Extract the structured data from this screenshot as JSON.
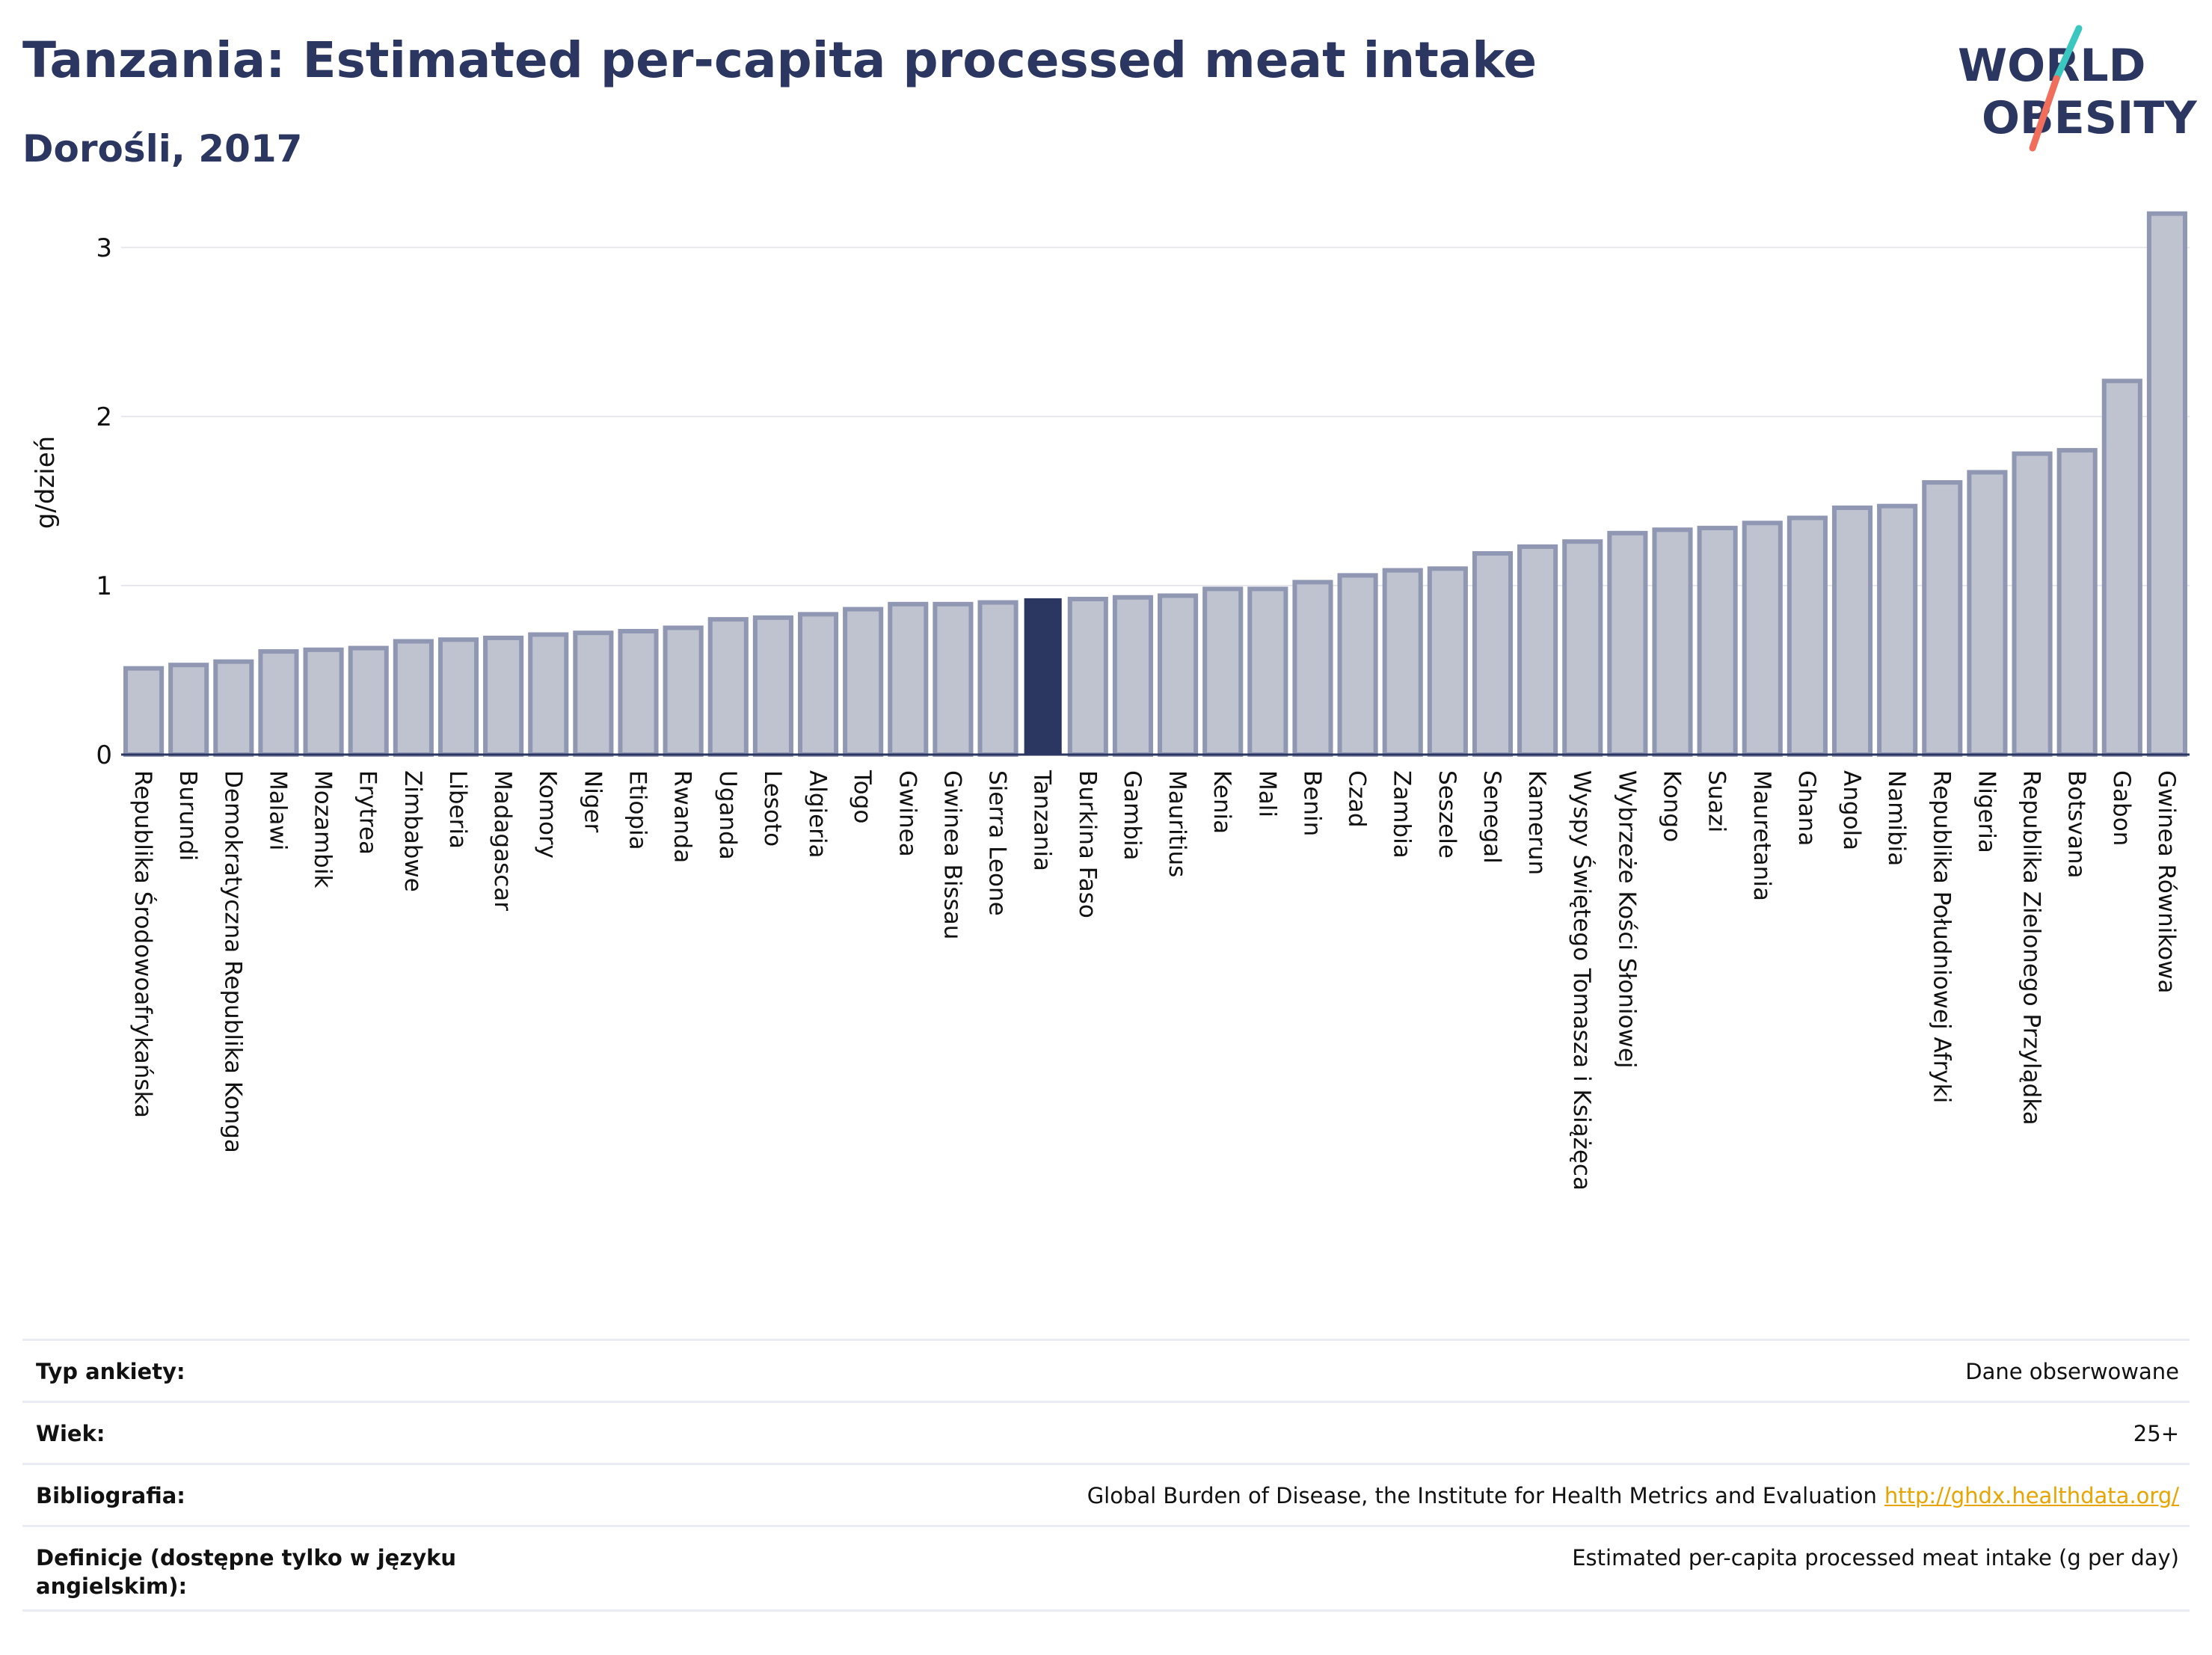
{
  "header": {
    "title": "Tanzania: Estimated per-capita processed meat intake",
    "subtitle": "Dorośli, 2017"
  },
  "logo": {
    "line1": "WORLD",
    "line2": "OBESITY",
    "accent_colors": [
      "#3cc6c0",
      "#f06e5b"
    ]
  },
  "colors": {
    "highlight": "#2b3661",
    "bar": "#bfc3d0",
    "bar_edge": "#8f97b3",
    "grid": "#e6e8ee"
  },
  "chart_data": {
    "type": "bar",
    "ylabel": "g/dzień",
    "ylim": [
      0,
      3.3
    ],
    "yticks": [
      0,
      1,
      2,
      3
    ],
    "grid": true,
    "highlight": "Tanzania",
    "categories": [
      "Republika Środowoafrykańska",
      "Burundi",
      "Demokratyczna Republika Konga",
      "Malawi",
      "Mozambik",
      "Erytrea",
      "Zimbabwe",
      "Liberia",
      "Madagascar",
      "Komory",
      "Niger",
      "Etiopia",
      "Rwanda",
      "Uganda",
      "Lesoto",
      "Algieria",
      "Togo",
      "Gwinea",
      "Gwinea Bissau",
      "Sierra Leone",
      "Tanzania",
      "Burkina Faso",
      "Gambia",
      "Mauritius",
      "Kenia",
      "Mali",
      "Benin",
      "Czad",
      "Zambia",
      "Seszele",
      "Senegal",
      "Kamerun",
      "Wyspy Świętego Tomasza i Książęca",
      "Wybrzeże Kości Słoniowej",
      "Kongo",
      "Suazi",
      "Mauretania",
      "Ghana",
      "Angola",
      "Namibia",
      "Republika Południowej Afryki",
      "Nigeria",
      "Republika Zielonego Przylądka",
      "Botsvana",
      "Gabon",
      "Gwinea Równikowa"
    ],
    "values": [
      0.51,
      0.53,
      0.55,
      0.61,
      0.62,
      0.63,
      0.67,
      0.68,
      0.69,
      0.71,
      0.72,
      0.73,
      0.75,
      0.8,
      0.81,
      0.83,
      0.86,
      0.89,
      0.89,
      0.9,
      0.92,
      0.92,
      0.93,
      0.94,
      0.98,
      0.98,
      1.02,
      1.06,
      1.09,
      1.1,
      1.19,
      1.23,
      1.26,
      1.31,
      1.33,
      1.34,
      1.37,
      1.4,
      1.46,
      1.47,
      1.61,
      1.67,
      1.78,
      1.8,
      2.21,
      3.2
    ]
  },
  "meta": {
    "rows": [
      {
        "label": "Typ ankiety:",
        "value": "Dane obserwowane"
      },
      {
        "label": "Wiek:",
        "value": "25+"
      },
      {
        "label": "Bibliografia:",
        "value": "Global Burden of Disease, the Institute for Health Metrics and Evaluation",
        "link": "http://ghdx.healthdata.org/"
      },
      {
        "label": "Definicje (dostępne tylko w języku angielskim):",
        "value": "Estimated per-capita processed meat intake (g per day)"
      }
    ]
  }
}
